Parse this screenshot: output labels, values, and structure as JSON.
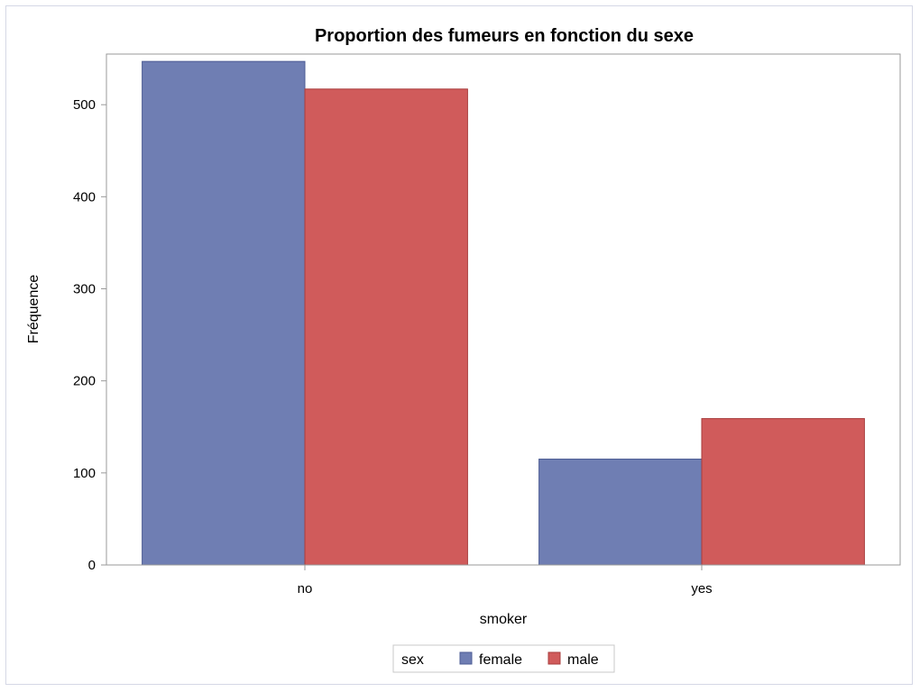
{
  "chart_data": {
    "type": "bar",
    "title": "Proportion des fumeurs en fonction du sexe",
    "xlabel": "smoker",
    "ylabel": "Fréquence",
    "categories": [
      "no",
      "yes"
    ],
    "series": [
      {
        "name": "female",
        "values": [
          547,
          115
        ],
        "color": "#6f7eb3"
      },
      {
        "name": "male",
        "values": [
          517,
          159
        ],
        "color": "#d05b5b"
      }
    ],
    "ylim": [
      0,
      555
    ],
    "yticks": [
      0,
      100,
      200,
      300,
      400,
      500
    ],
    "grid": false,
    "legend": {
      "title": "sex",
      "position": "bottom-center"
    }
  }
}
